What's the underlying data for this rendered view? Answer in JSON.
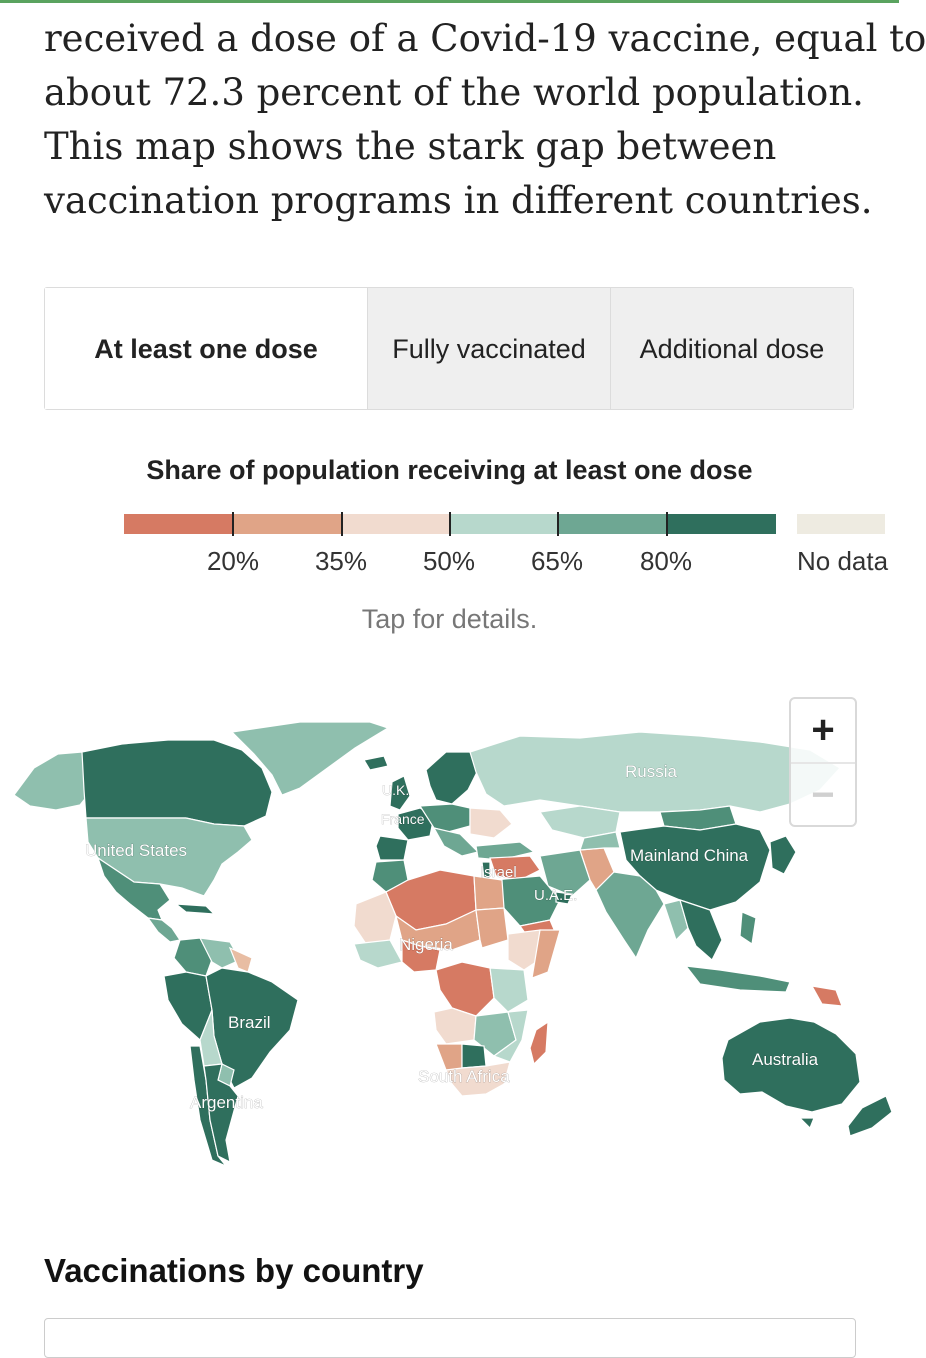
{
  "intro": {
    "lines": [
      "received a dose of a Covid-19 vaccine, equal to",
      "about 72.3 percent of the world population.",
      "This map shows the stark gap between",
      "vaccination programs in different countries."
    ]
  },
  "tabs": [
    {
      "label": "At least one dose",
      "active": true
    },
    {
      "label": "Fully vaccinated",
      "active": false
    },
    {
      "label": "Additional dose",
      "active": false
    }
  ],
  "legend": {
    "title": "Share of population receiving at least one dose",
    "ticks": [
      "20%",
      "35%",
      "50%",
      "65%",
      "80%"
    ],
    "no_data_label": "No data",
    "colors": [
      "#d67a63",
      "#e0a487",
      "#f1dbcf",
      "#b7d8cc",
      "#6ea793",
      "#2f6f5d"
    ],
    "no_data_color": "#eeebe1"
  },
  "tap_note": "Tap for details.",
  "map": {
    "labels": {
      "russia": "Russia",
      "china": "Mainland China",
      "us": "United States",
      "uk": "U.K.",
      "france": "France",
      "israel": "Israel",
      "uae": "U.A.E.",
      "nigeria": "Nigeria",
      "brazil": "Brazil",
      "argentina": "Argentina",
      "south_africa": "South Africa",
      "australia": "Australia"
    }
  },
  "zoom": {
    "in": "+",
    "out": "−"
  },
  "section_heading": "Vaccinations by country"
}
